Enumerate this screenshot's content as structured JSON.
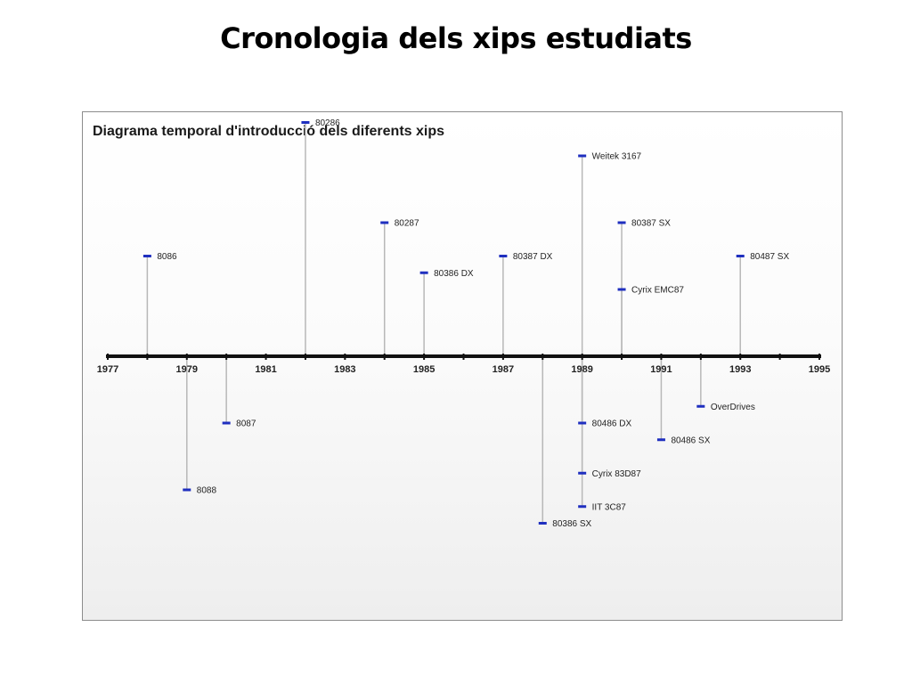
{
  "slide": {
    "title": "Cronologia dels xips estudiats"
  },
  "chart_data": {
    "type": "timeline",
    "title": "Diagrama temporal d'introducció dels diferents xips",
    "xlim": [
      1977,
      1995
    ],
    "ticks": [
      "1977",
      "1979",
      "1981",
      "1983",
      "1985",
      "1987",
      "1989",
      "1991",
      "1993",
      "1995"
    ],
    "colors": {
      "marker": "#1f2fbf",
      "stem": "#b8b8b8",
      "axis": "#111111"
    },
    "events": [
      {
        "label": "8086",
        "year": 1978,
        "side": "above",
        "level": 3
      },
      {
        "label": "8088",
        "year": 1979,
        "side": "below",
        "level": 4
      },
      {
        "label": "8087",
        "year": 1980,
        "side": "below",
        "level": 2
      },
      {
        "label": "80286",
        "year": 1982,
        "side": "above",
        "level": 7
      },
      {
        "label": "80287",
        "year": 1984,
        "side": "above",
        "level": 4
      },
      {
        "label": "80386 DX",
        "year": 1985,
        "side": "above",
        "level": 2.5
      },
      {
        "label": "80387 DX",
        "year": 1987,
        "side": "above",
        "level": 3
      },
      {
        "label": "80386 SX",
        "year": 1988,
        "side": "below",
        "level": 5
      },
      {
        "label": "Weitek 3167",
        "year": 1989,
        "side": "above",
        "level": 6
      },
      {
        "label": "80486 DX",
        "year": 1989,
        "side": "below",
        "level": 2
      },
      {
        "label": "Cyrix 83D87",
        "year": 1989,
        "side": "below",
        "level": 3.5
      },
      {
        "label": "IIT 3C87",
        "year": 1989,
        "side": "below",
        "level": 4.5
      },
      {
        "label": "80387 SX",
        "year": 1990,
        "side": "above",
        "level": 4
      },
      {
        "label": "Cyrix EMC87",
        "year": 1990,
        "side": "above",
        "level": 2
      },
      {
        "label": "80486 SX",
        "year": 1991,
        "side": "below",
        "level": 2.5
      },
      {
        "label": "OverDrives",
        "year": 1992,
        "side": "below",
        "level": 1.5
      },
      {
        "label": "80487 SX",
        "year": 1993,
        "side": "above",
        "level": 3
      }
    ]
  }
}
